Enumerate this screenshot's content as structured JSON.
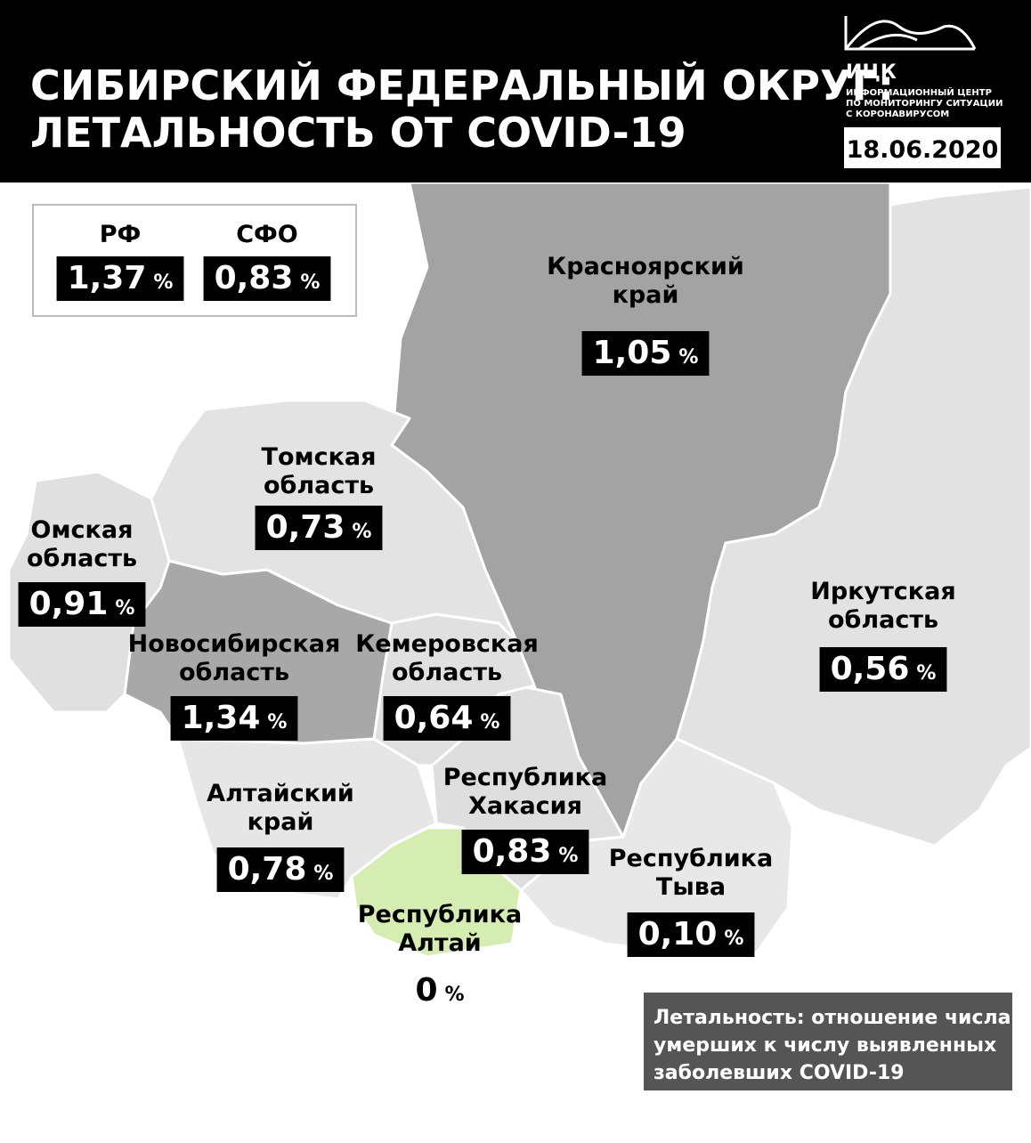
{
  "header": {
    "title_lines": [
      "СИБИРСКИЙ ФЕДЕРАЛЬНЫЙ ОКРУГ:",
      "ЛЕТАЛЬНОСТЬ ОТ COVID-19"
    ],
    "logo": "ИЦК",
    "logo_caption": [
      "ИНФОРМАЦИОННЫЙ ЦЕНТР",
      "ПО МОНИТОРИНГУ СИТУАЦИИ",
      "С КОРОНАВИРУСОМ"
    ],
    "date": "18.06.2020"
  },
  "summary": [
    {
      "name": "РФ",
      "value": "1,37",
      "unit": "%"
    },
    {
      "name": "СФО",
      "value": "0,83",
      "unit": "%"
    }
  ],
  "regions": [
    {
      "name": [
        "Красноярский",
        "край"
      ],
      "value": "1,05",
      "unit": "%",
      "color": "#a3a3a3"
    },
    {
      "name": [
        "Томская",
        "область"
      ],
      "value": "0,73",
      "unit": "%",
      "color": "#e3e3e3"
    },
    {
      "name": [
        "Омская",
        "область"
      ],
      "value": "0,91",
      "unit": "%",
      "color": "#e0e0e0"
    },
    {
      "name": [
        "Новосибирская",
        "область"
      ],
      "value": "1,34",
      "unit": "%",
      "color": "#a8a8a8"
    },
    {
      "name": [
        "Кемеровская",
        "область"
      ],
      "value": "0,64",
      "unit": "%",
      "color": "#e0e0e0"
    },
    {
      "name": [
        "Иркутская",
        "область"
      ],
      "value": "0,56",
      "unit": "%",
      "color": "#e2e2e2"
    },
    {
      "name": [
        "Алтайский",
        "край"
      ],
      "value": "0,78",
      "unit": "%",
      "color": "#e6e6e6"
    },
    {
      "name": [
        "Республика",
        "Хакасия"
      ],
      "value": "0,83",
      "unit": "%",
      "color": "#dedede"
    },
    {
      "name": [
        "Республика",
        "Тыва"
      ],
      "value": "0,10",
      "unit": "%",
      "color": "#e8e8e8"
    },
    {
      "name": [
        "Республика",
        "Алтай"
      ],
      "value": "0",
      "unit": "%",
      "color": "#d5ecb3"
    }
  ],
  "note": [
    "Летальность: отношение числа",
    "умерших к числу выявленных",
    "заболевших COVID-19"
  ]
}
